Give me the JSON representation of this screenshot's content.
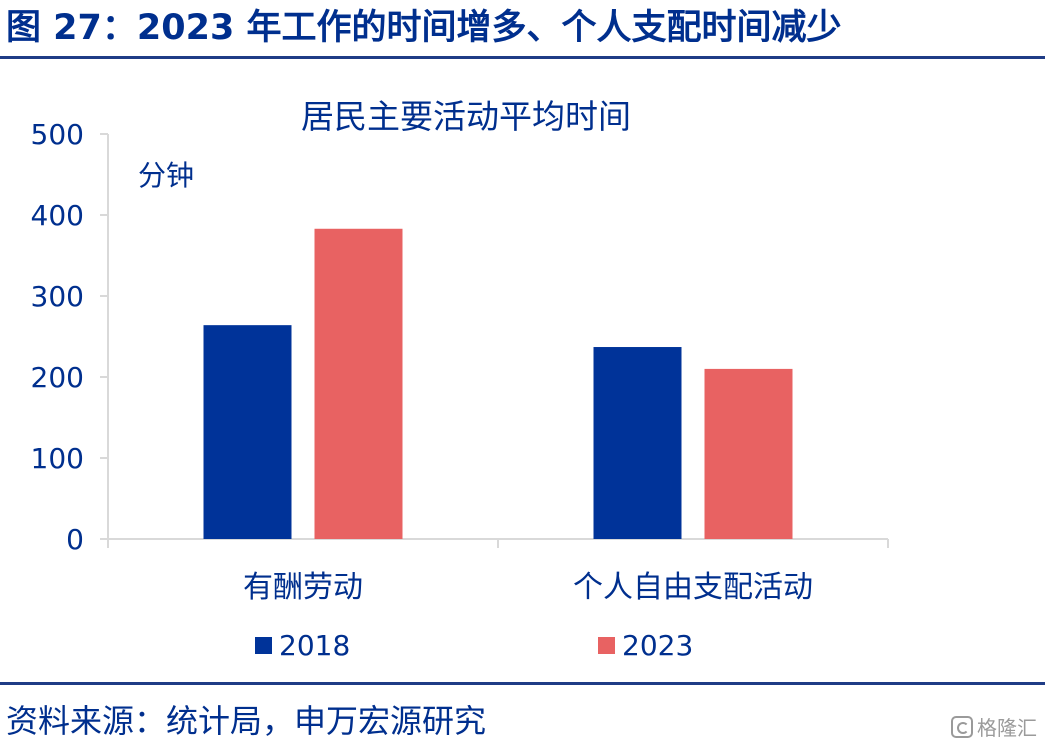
{
  "figure": {
    "title": "图 27：2023 年工作的时间增多、个人支配时间减少",
    "source": "资料来源：统计局，申万宏源研究",
    "watermark": "格隆汇"
  },
  "chart_data": {
    "type": "bar",
    "title": "居民主要活动平均时间",
    "unit_label": "分钟",
    "categories": [
      "有酬劳动",
      "个人自由支配活动"
    ],
    "series": [
      {
        "name": "2018",
        "values": [
          264,
          237
        ],
        "color": "#003399"
      },
      {
        "name": "2023",
        "values": [
          383,
          210
        ],
        "color": "#E86262"
      }
    ],
    "y_ticks": [
      "0",
      "100",
      "200",
      "300",
      "400",
      "500"
    ],
    "ylim": [
      0,
      500
    ],
    "grid": false,
    "legend_position": "bottom",
    "text_color": "#002F8E",
    "axis_color": "#D9D9D9"
  }
}
